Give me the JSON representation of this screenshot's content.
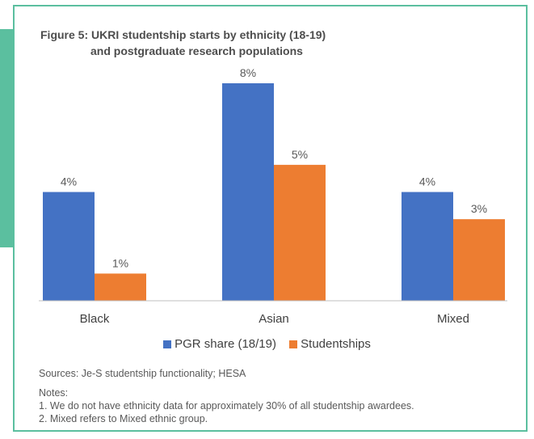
{
  "title_line1": "Figure 5: UKRI studentship starts by ethnicity (18-19)",
  "title_line2": "and postgraduate research populations",
  "chart_data": {
    "type": "bar",
    "categories": [
      "Black",
      "Asian",
      "Mixed"
    ],
    "series": [
      {
        "name": "PGR share (18/19)",
        "values": [
          4,
          8,
          4
        ],
        "labels": [
          "4%",
          "8%",
          "4%"
        ],
        "color": "#4472c4"
      },
      {
        "name": "Studentships",
        "values": [
          1,
          5,
          3
        ],
        "labels": [
          "1%",
          "5%",
          "3%"
        ],
        "color": "#ed7d31"
      }
    ],
    "ylim": [
      0,
      8
    ],
    "grid": false,
    "legend_position": "bottom"
  },
  "sources": "Sources: Je-S studentship functionality; HESA",
  "notes_heading": "Notes:",
  "notes": [
    "1. We do not have ethnicity data for approximately 30% of all studentship awardees.",
    "2. Mixed refers to Mixed ethnic group."
  ],
  "colors": {
    "accent": "#5bbf9f",
    "series1": "#4472c4",
    "series2": "#ed7d31"
  }
}
